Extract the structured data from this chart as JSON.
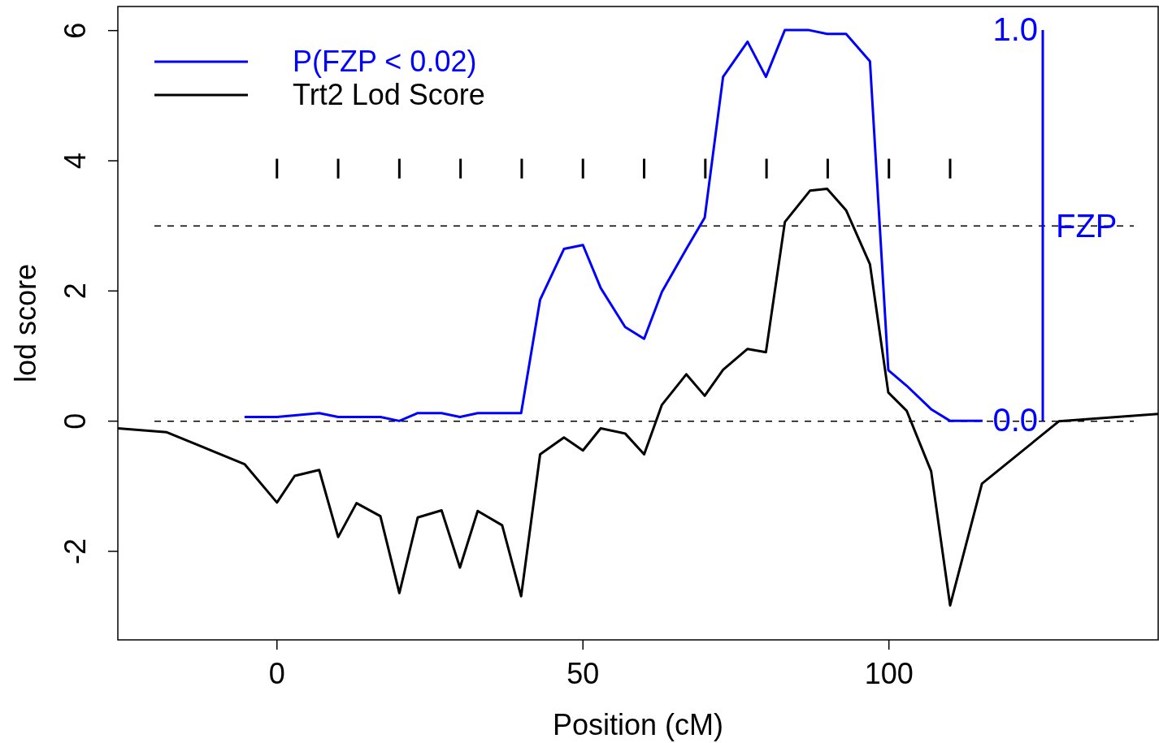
{
  "chart_data": {
    "type": "line",
    "xlabel": "Position (cM)",
    "ylabel": "lod score",
    "y2label": "FZP",
    "xlim": [
      -26,
      144
    ],
    "xticks": [
      0,
      50,
      100
    ],
    "ylim": [
      -3.36,
      6.37
    ],
    "yticks": [
      -2,
      0,
      2,
      4,
      6
    ],
    "y2lim": [
      -0.56,
      1.06
    ],
    "y2ticks": [
      {
        "value": 0,
        "label": "0.0"
      },
      {
        "value": 1,
        "label": "1.0"
      }
    ],
    "legend": "top left",
    "grid": false,
    "line_style": "solid",
    "ref_lines": [
      {
        "axis": "y",
        "value": 0,
        "color": "#000000",
        "line_style": "dashed"
      },
      {
        "axis": "y",
        "value": 3,
        "color": "#000000",
        "line_style": "dashed"
      }
    ],
    "series": [
      {
        "name": "P(FZP < 0.02)",
        "color": "#0000ff",
        "axis": "y2",
        "x": [
          -5.3,
          0,
          6.9,
          10,
          13,
          16.9,
          20,
          23,
          26.9,
          29.9,
          32.8,
          36.8,
          39.9,
          43,
          46.9,
          50,
          52.9,
          56.9,
          60,
          62.9,
          66.9,
          69.9,
          72.9,
          76.9,
          79.9,
          83,
          86.8,
          89.9,
          93,
          96.9,
          99.9,
          102.9,
          106.9,
          110,
          115.3
        ],
        "values": [
          0.01,
          0.01,
          0.02,
          0.01,
          0.01,
          0.01,
          0.0,
          0.02,
          0.02,
          0.01,
          0.02,
          0.02,
          0.02,
          0.31,
          0.44,
          0.45,
          0.34,
          0.24,
          0.21,
          0.33,
          0.44,
          0.52,
          0.88,
          0.97,
          0.88,
          1.0,
          1.0,
          0.99,
          0.99,
          0.92,
          0.13,
          0.09,
          0.03,
          0.0,
          0.0
        ]
      },
      {
        "name": "Trt2 Lod Score",
        "color": "#000000",
        "x": [
          -26,
          -18,
          -5.3,
          0,
          2.9,
          6.9,
          10,
          13,
          16.9,
          20,
          23,
          26.9,
          29.9,
          32.8,
          36.8,
          39.9,
          43,
          46.9,
          50,
          52.9,
          56.9,
          60,
          62.9,
          66.9,
          69.9,
          72.9,
          76.9,
          79.9,
          83,
          87.1,
          89.9,
          93,
          96.9,
          99.9,
          102.9,
          106.9,
          110,
          115.2,
          127.8,
          144
        ],
        "values": [
          -0.11,
          -0.17,
          -0.66,
          -1.25,
          -0.84,
          -0.75,
          -1.78,
          -1.26,
          -1.46,
          -2.64,
          -1.48,
          -1.37,
          -2.25,
          -1.38,
          -1.6,
          -2.69,
          -0.51,
          -0.25,
          -0.45,
          -0.11,
          -0.19,
          -0.51,
          0.25,
          0.72,
          0.39,
          0.79,
          1.11,
          1.06,
          3.06,
          3.54,
          3.57,
          3.24,
          2.41,
          0.44,
          0.16,
          -0.77,
          -2.83,
          -0.96,
          0.0,
          0.11
        ]
      },
      {
        "type": "line",
        "color": "#000000",
        "x": [
          0,
          0,
          null,
          10,
          10,
          null,
          20,
          20,
          null,
          30,
          30,
          null,
          40,
          40,
          null,
          50,
          50,
          null,
          60,
          60,
          null,
          70,
          70,
          null,
          80,
          80,
          null,
          90,
          90,
          null,
          100,
          100,
          null,
          110,
          110
        ],
        "values": [
          3.73,
          4.03,
          null,
          3.73,
          4.03,
          null,
          3.73,
          4.03,
          null,
          3.73,
          4.03,
          null,
          3.73,
          4.03,
          null,
          3.73,
          4.03,
          null,
          3.73,
          4.03,
          null,
          3.73,
          4.03,
          null,
          3.73,
          4.03,
          null,
          3.73,
          4.03,
          null,
          3.73,
          4.03,
          null,
          3.73,
          4.03
        ]
      }
    ]
  }
}
